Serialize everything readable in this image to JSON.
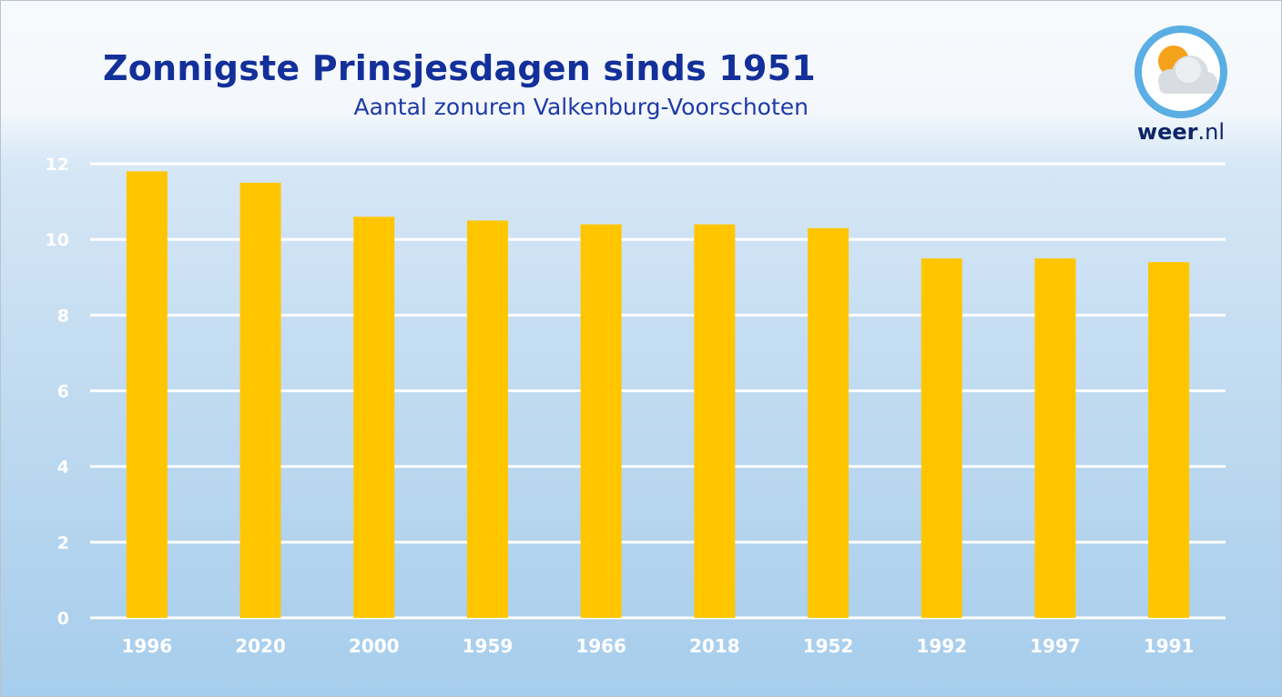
{
  "header": {
    "title": "Zonnigste Prinsjesdagen sinds 1951",
    "subtitle": "Aantal zonuren Valkenburg-Voorschoten"
  },
  "logo": {
    "icon": "sun-cloud-icon",
    "brand": "weer",
    "tld": ".nl",
    "ring_color": "#5aaee3",
    "sun_color": "#f5a21a"
  },
  "colors": {
    "bar": "#ffc600",
    "title": "#13309a",
    "gridline": "#ffffff"
  },
  "chart_data": {
    "type": "bar",
    "title": "Zonnigste Prinsjesdagen sinds 1951",
    "subtitle": "Aantal zonuren Valkenburg-Voorschoten",
    "xlabel": "",
    "ylabel": "",
    "categories": [
      "1996",
      "2020",
      "2000",
      "1959",
      "1966",
      "2018",
      "1952",
      "1992",
      "1997",
      "1991"
    ],
    "values": [
      11.8,
      11.5,
      10.6,
      10.5,
      10.4,
      10.4,
      10.3,
      9.5,
      9.5,
      9.4
    ],
    "ylim": [
      0,
      12
    ],
    "yticks": [
      0,
      2,
      4,
      6,
      8,
      10,
      12
    ],
    "grid": true,
    "legend": "none"
  }
}
